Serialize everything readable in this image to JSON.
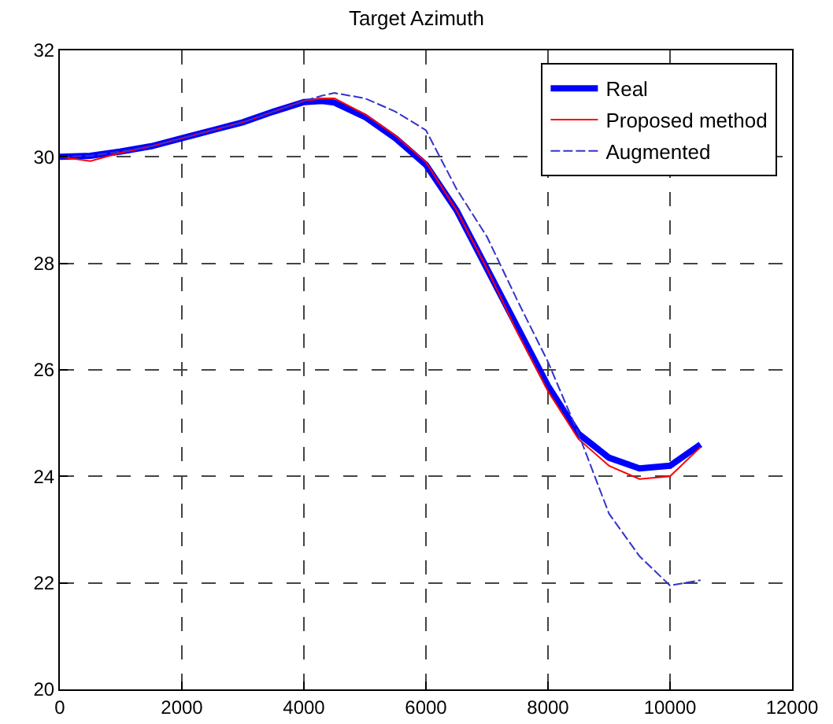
{
  "chart_data": {
    "type": "line",
    "title": "Target Azimuth",
    "x": [
      0,
      500,
      1000,
      1500,
      2000,
      2500,
      3000,
      3500,
      4000,
      4300,
      4500,
      5000,
      5500,
      6000,
      6500,
      7000,
      7500,
      8000,
      8500,
      9000,
      9500,
      10000,
      10500
    ],
    "series": [
      {
        "name": "Real",
        "color": "#0000ff",
        "line_style": "solid",
        "values": [
          30.0,
          30.02,
          30.1,
          30.2,
          30.35,
          30.5,
          30.65,
          30.85,
          31.03,
          31.05,
          31.02,
          30.75,
          30.35,
          29.85,
          29.0,
          27.9,
          26.8,
          25.7,
          24.8,
          24.35,
          24.15,
          24.2,
          24.6
        ]
      },
      {
        "name": "Proposed method",
        "color": "#ff0000",
        "line_style": "solid",
        "values": [
          30.0,
          29.92,
          30.08,
          30.2,
          30.35,
          30.5,
          30.65,
          30.85,
          31.05,
          31.1,
          31.1,
          30.8,
          30.4,
          29.9,
          29.0,
          27.9,
          26.7,
          25.6,
          24.7,
          24.2,
          23.95,
          24.0,
          24.55
        ]
      },
      {
        "name": "Augmented",
        "color": "#3333cc",
        "line_style": "dashed",
        "values": [
          30.0,
          30.02,
          30.1,
          30.2,
          30.35,
          30.5,
          30.65,
          30.85,
          31.05,
          31.15,
          31.2,
          31.1,
          30.85,
          30.5,
          29.4,
          28.5,
          27.3,
          26.15,
          24.8,
          23.3,
          22.5,
          21.95,
          22.05
        ]
      }
    ],
    "xlim": [
      0,
      12000
    ],
    "xticks": [
      0,
      2000,
      4000,
      6000,
      8000,
      10000,
      12000
    ],
    "ylim": [
      20,
      32
    ],
    "yticks": [
      20,
      22,
      24,
      26,
      28,
      30,
      32
    ],
    "grid": true,
    "legend": "top right",
    "marker": "none"
  }
}
